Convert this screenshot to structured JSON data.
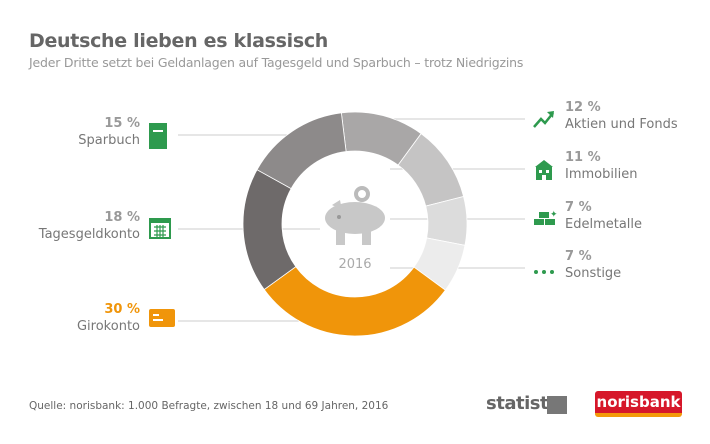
{
  "header": {
    "title": "Deutsche lieben es klassisch",
    "subtitle": "Jeder Dritte setzt bei Geldanlagen auf Tagesgeld und Sparbuch – trotz Niedrigzins"
  },
  "chart_data": {
    "type": "pie",
    "title": "Deutsche lieben es klassisch",
    "center_label": "2016",
    "unit": "%",
    "slices": [
      {
        "label": "Aktien und Fonds",
        "value": 12,
        "display": "12 %",
        "color": "#a9a7a7",
        "icon": "trend-up-icon",
        "side": "right"
      },
      {
        "label": "Immobilien",
        "value": 11,
        "display": "11 %",
        "color": "#c5c4c4",
        "icon": "house-icon",
        "side": "right"
      },
      {
        "label": "Edelmetalle",
        "value": 7,
        "display": "7 %",
        "color": "#dcdcdc",
        "icon": "gold-bars-icon",
        "side": "right"
      },
      {
        "label": "Sonstige",
        "value": 7,
        "display": "7 %",
        "color": "#ececec",
        "icon": "dots-icon",
        "side": "right"
      },
      {
        "label": "Girokonto",
        "value": 30,
        "display": "30 %",
        "color": "#f0950a",
        "icon": "card-icon",
        "side": "left"
      },
      {
        "label": "Tagesgeldkonto",
        "value": 18,
        "display": "18 %",
        "color": "#6e6a6a",
        "icon": "calendar-icon",
        "side": "left"
      },
      {
        "label": "Sparbuch",
        "value": 15,
        "display": "15 %",
        "color": "#8d8a8a",
        "icon": "passbook-icon",
        "side": "left"
      }
    ]
  },
  "icon_color": "#2e9a4e",
  "footer": {
    "source": "Quelle: norisbank: 1.000 Befragte, zwischen 18 und 69 Jahren, 2016",
    "statista": "statista",
    "norisbank": "norisbank"
  }
}
